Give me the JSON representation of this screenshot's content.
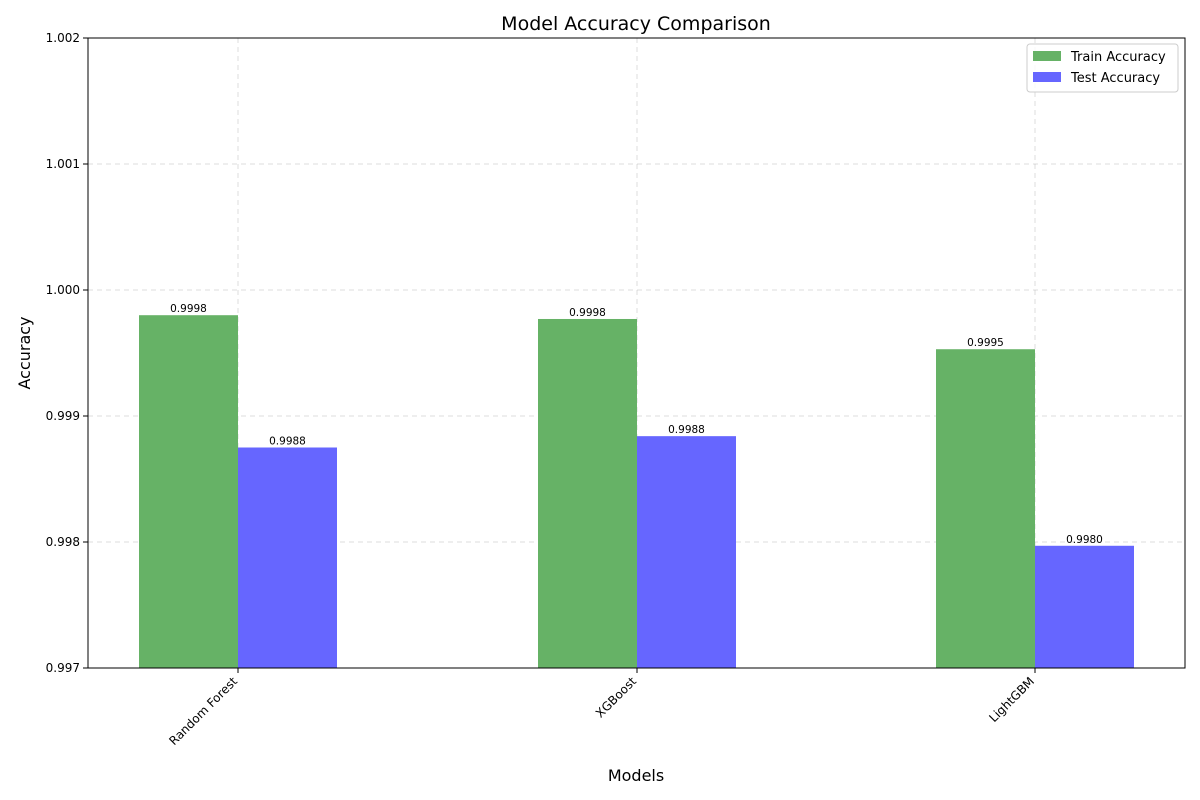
{
  "chart_data": {
    "type": "bar",
    "title": "Model Accuracy Comparison",
    "xlabel": "Models",
    "ylabel": "Accuracy",
    "categories": [
      "Random Forest",
      "XGBoost",
      "LightGBM"
    ],
    "series": [
      {
        "name": "Train Accuracy",
        "values": [
          0.9998,
          0.99977,
          0.99953
        ],
        "labels": [
          "0.9998",
          "0.9998",
          "0.9995"
        ],
        "color": "#66b266"
      },
      {
        "name": "Test Accuracy",
        "values": [
          0.99875,
          0.99884,
          0.99797
        ],
        "labels": [
          "0.9988",
          "0.9988",
          "0.9980"
        ],
        "color": "#6666ff"
      }
    ],
    "ylim": [
      0.997,
      1.002
    ],
    "yticks": [
      0.997,
      0.998,
      0.999,
      1.0,
      1.001,
      1.002
    ],
    "ytick_labels": [
      "0.997",
      "0.998",
      "0.999",
      "1.000",
      "1.001",
      "1.002"
    ],
    "grid": true,
    "legend_position": "top-right"
  }
}
